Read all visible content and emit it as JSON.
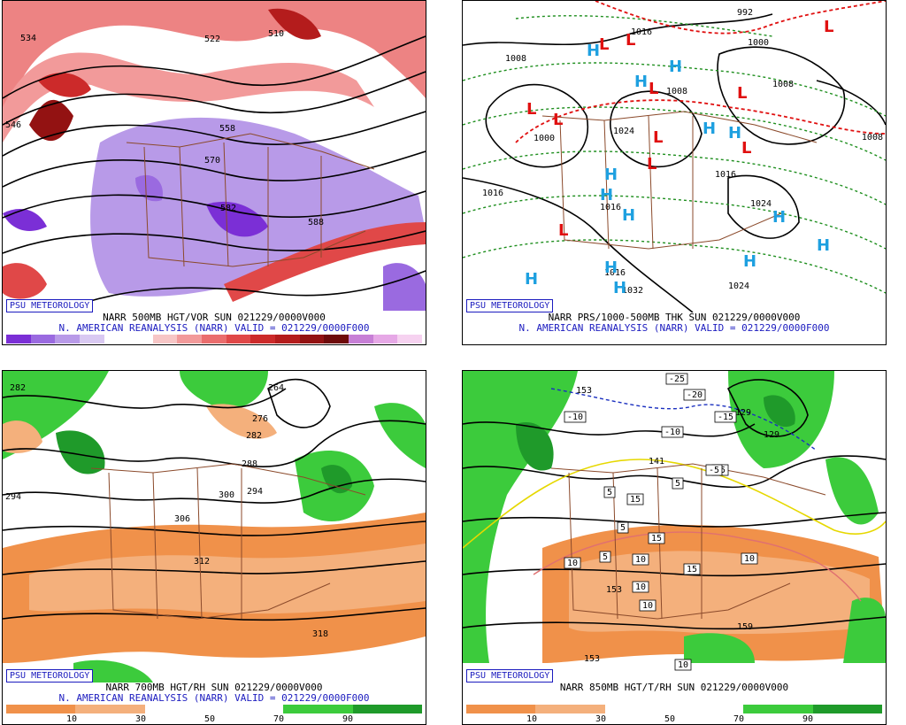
{
  "panels": [
    {
      "badge": "PSU METEOROLOGY",
      "caption1": "NARR 500MB HGT/VOR SUN 021229/0000V000",
      "caption2": "N. AMERICAN REANALYSIS (NARR) VALID = 021229/0000F000",
      "scale_ticks": [
        "0",
        "2",
        "4",
        "6",
        "8",
        "10",
        "12",
        "14",
        "16",
        "18",
        "20",
        "22",
        "24",
        "26",
        "28",
        "30",
        "32",
        "34"
      ],
      "contour_labels": [
        "534",
        "546",
        "522",
        "510",
        "570",
        "582",
        "588",
        "558"
      ],
      "colors": [
        "#7b2fd6",
        "#9a6ae0",
        "#b89ae8",
        "#d9c9f2",
        "#ffffff",
        "#ffffff",
        "#f7c6c6",
        "#f29a9a",
        "#ea6d6d",
        "#e04848",
        "#cc2a2a",
        "#b41c1c",
        "#931212",
        "#6e0a0a",
        "#c77fd6",
        "#e6a8e6",
        "#f6d2f0"
      ]
    },
    {
      "badge": "PSU METEOROLOGY",
      "caption1": "NARR PRS/1000-500MB THK SUN 021229/0000V000",
      "caption2": "N. AMERICAN REANALYSIS (NARR) VALID = 021229/0000F000",
      "contour_labels": [
        "1008",
        "1016",
        "1000",
        "1016",
        "1008",
        "1016",
        "1024",
        "1016",
        "1008",
        "1024",
        "1000",
        "1008",
        "1024",
        "1032",
        "1016",
        "992"
      ],
      "low_symbol": "L",
      "high_symbol": "H",
      "low_color": "#e01010",
      "high_color": "#1ea0e0"
    },
    {
      "badge": "PSU METEOROLOGY",
      "caption1": "NARR 700MB HGT/RH SUN 021229/0000V000",
      "caption2": "N. AMERICAN REANALYSIS (NARR) VALID = 021229/0000F000",
      "scale_ticks": [
        "10",
        "30",
        "50",
        "70",
        "90"
      ],
      "contour_labels": [
        "282",
        "264",
        "276",
        "282",
        "288",
        "294",
        "300",
        "294",
        "306",
        "312",
        "318"
      ],
      "colors": [
        "#f0914a",
        "#f4b07c",
        "#ffffff",
        "#ffffff",
        "#3ccb3c",
        "#1f9a2a"
      ]
    },
    {
      "badge": "PSU METEOROLOGY",
      "caption1": "NARR 850MB HGT/T/RH SUN 021229/0000V000",
      "caption2": "",
      "scale_ticks": [
        "10",
        "30",
        "50",
        "70",
        "90"
      ],
      "contour_labels": [
        "153",
        "129",
        "141",
        "153",
        "159",
        "153",
        "129"
      ],
      "temp_labels": [
        "-25",
        "-20",
        "-10",
        "-15",
        "-10",
        "-5",
        "5",
        "5",
        "15",
        "15",
        "5",
        "15",
        "10",
        "10",
        "10",
        "10",
        "10",
        "10",
        "-5",
        "5"
      ],
      "colors": [
        "#f0914a",
        "#f4b07c",
        "#ffffff",
        "#ffffff",
        "#3ccb3c",
        "#1f9a2a"
      ]
    }
  ]
}
